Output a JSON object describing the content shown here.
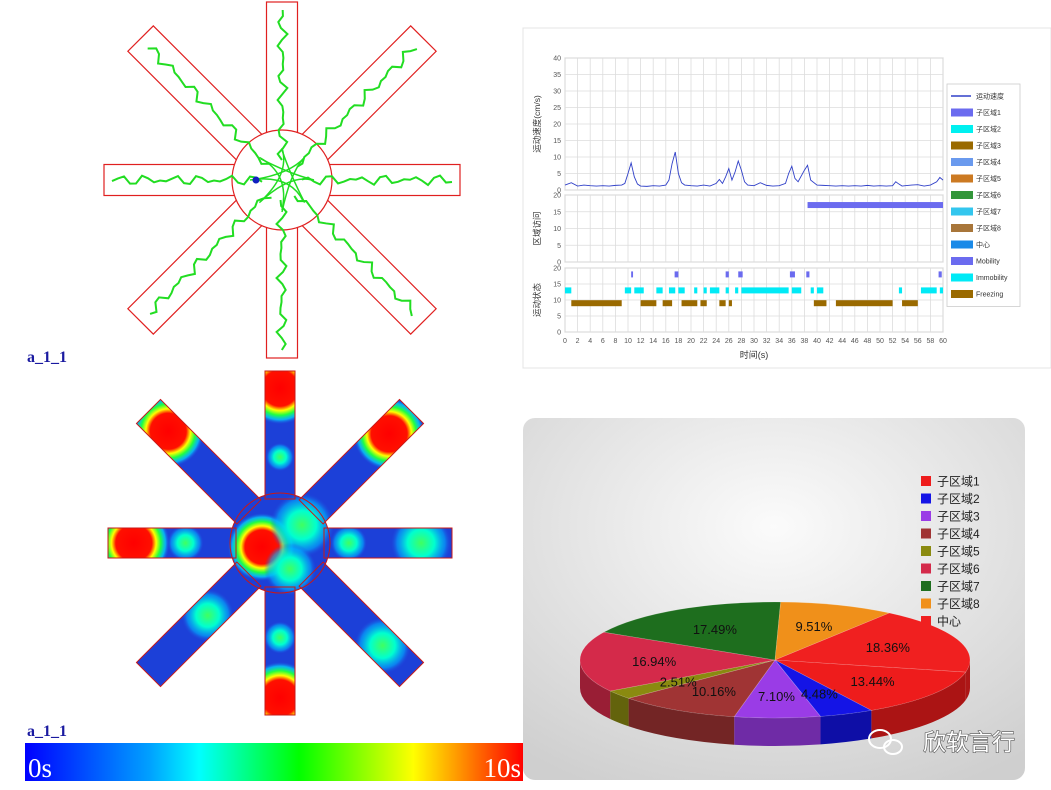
{
  "track": {
    "label": "a_1_1"
  },
  "heatmap": {
    "label": "a_1_1",
    "scale_min_label": "0s",
    "scale_max_label": "10s"
  },
  "watermark": "欣软言行",
  "chart_data": [
    {
      "type": "line",
      "xlabel": "时间(s)",
      "xlim": [
        0,
        60
      ],
      "xticks": [
        0,
        2,
        4,
        6,
        8,
        10,
        12,
        14,
        16,
        18,
        20,
        22,
        24,
        26,
        28,
        30,
        32,
        34,
        36,
        38,
        40,
        42,
        44,
        46,
        48,
        50,
        52,
        54,
        56,
        58,
        60
      ],
      "grid": true,
      "x": [
        0,
        1,
        2,
        3,
        4,
        5,
        6,
        7,
        8,
        9,
        9.5,
        10,
        10.5,
        11,
        11.5,
        12,
        13,
        14,
        15,
        16,
        16.5,
        17,
        17.5,
        18,
        18.5,
        19,
        20,
        21,
        22,
        23,
        24,
        24.5,
        25,
        25.5,
        26,
        26.5,
        27,
        27.5,
        28,
        28.5,
        29,
        30,
        31,
        32,
        33,
        34,
        35,
        35.5,
        36,
        36.5,
        37,
        38,
        38.5,
        39,
        40,
        41,
        42,
        43,
        44,
        45,
        46,
        47,
        48,
        49,
        50,
        51,
        52,
        52.5,
        53,
        53.5,
        54,
        55,
        56,
        57,
        58,
        59,
        59.5,
        60
      ],
      "series": [
        {
          "name": "运动速度",
          "color": "#3040c8",
          "values": [
            1.5,
            2.2,
            1.2,
            1.5,
            1.3,
            1.2,
            1.3,
            1.2,
            1.4,
            1.5,
            2,
            5,
            8.2,
            4,
            1.8,
            1.2,
            1.1,
            1.3,
            1.2,
            1.5,
            3,
            8,
            11.5,
            5,
            2.2,
            1.5,
            1.3,
            1.2,
            1.5,
            1.2,
            2,
            3.2,
            2,
            4,
            6.5,
            3,
            5.5,
            8.8,
            6,
            2.5,
            1.5,
            1.3,
            2.2,
            1.4,
            1.2,
            1.3,
            2,
            5,
            7.2,
            3.5,
            2.5,
            6,
            7.5,
            3,
            1.5,
            1.4,
            1.3,
            1.2,
            1.3,
            1.2,
            1.3,
            1.2,
            1.4,
            1.2,
            1.3,
            1.2,
            1.3,
            2.5,
            1.8,
            1.2,
            1.3,
            1.5,
            1.6,
            1.2,
            1.5,
            2.5,
            3.8,
            3
          ]
        }
      ],
      "panels": [
        {
          "ylabel": "运动速度(cm/s)",
          "ylim": [
            0,
            40
          ],
          "yticks": [
            0,
            5,
            10,
            15,
            20,
            25,
            30,
            35,
            40
          ]
        },
        {
          "ylabel": "区域访问",
          "ylim": [
            0,
            20
          ],
          "yticks": [
            0,
            5,
            10,
            15,
            20
          ],
          "bands": [
            {
              "name": "子区域1",
              "color": "#6b6bef",
              "level": 17,
              "intervals": [
                [
                  38.5,
                  60
                ]
              ]
            },
            {
              "name": "子区域2",
              "color": "#00f0f0"
            },
            {
              "name": "子区域3",
              "color": "#9a6a00"
            },
            {
              "name": "子区域4",
              "color": "#6a9aee"
            },
            {
              "name": "子区域5",
              "color": "#cc7a22"
            },
            {
              "name": "子区域6",
              "color": "#33963a"
            },
            {
              "name": "子区域7",
              "color": "#33c6ee"
            },
            {
              "name": "子区域8",
              "color": "#a8763a"
            },
            {
              "name": "中心",
              "color": "#1a8ae8"
            }
          ]
        },
        {
          "ylabel": "运动状态",
          "ylim": [
            0,
            20
          ],
          "yticks": [
            0,
            5,
            10,
            15,
            20
          ],
          "bands": [
            {
              "name": "Mobility",
              "color": "#6b6bef",
              "level": 18,
              "intervals": [
                [
                  10.5,
                  10.8
                ],
                [
                  17.4,
                  18
                ],
                [
                  25.5,
                  26
                ],
                [
                  27.5,
                  28.2
                ],
                [
                  35.7,
                  36.5
                ],
                [
                  38.3,
                  38.8
                ],
                [
                  59.3,
                  59.8
                ]
              ]
            },
            {
              "name": "Immobility",
              "color": "#00eaf6",
              "level": 13,
              "intervals": [
                [
                  0,
                  1
                ],
                [
                  9.5,
                  10.5
                ],
                [
                  11,
                  12.5
                ],
                [
                  14.5,
                  15.5
                ],
                [
                  16.5,
                  17.5
                ],
                [
                  18,
                  19
                ],
                [
                  20.5,
                  21
                ],
                [
                  22,
                  22.5
                ],
                [
                  23,
                  24.5
                ],
                [
                  25.5,
                  26
                ],
                [
                  27,
                  27.5
                ],
                [
                  28,
                  35.5
                ],
                [
                  36,
                  37.5
                ],
                [
                  39,
                  39.5
                ],
                [
                  40,
                  41
                ],
                [
                  53,
                  53.5
                ],
                [
                  56.5,
                  59
                ],
                [
                  59.5,
                  60
                ]
              ]
            },
            {
              "name": "Freezing",
              "color": "#9a6a00",
              "level": 9,
              "intervals": [
                [
                  1,
                  9
                ],
                [
                  12,
                  14.5
                ],
                [
                  15.5,
                  17
                ],
                [
                  18.5,
                  21
                ],
                [
                  21.5,
                  22.5
                ],
                [
                  24.5,
                  25.5
                ],
                [
                  26,
                  26.5
                ],
                [
                  39.5,
                  41.5
                ],
                [
                  43,
                  52
                ],
                [
                  53.5,
                  56
                ]
              ]
            }
          ]
        }
      ]
    },
    {
      "type": "pie",
      "categories": [
        "子区域1",
        "子区域2",
        "子区域3",
        "子区域4",
        "子区域5",
        "子区域6",
        "子区域7",
        "子区域8",
        "中心"
      ],
      "values": [
        13.44,
        4.48,
        7.1,
        10.16,
        2.51,
        16.94,
        17.49,
        9.51,
        18.36
      ],
      "value_labels": [
        "13.44%",
        "4.48%",
        "7.10%",
        "10.16%",
        "2.51%",
        "16.94%",
        "17.49%",
        "9.51%",
        "18.36%"
      ],
      "colors": [
        "#ee1c1c",
        "#1414e6",
        "#9a3ce6",
        "#a03434",
        "#8a8a10",
        "#d42a4a",
        "#1e6e1e",
        "#f0901a",
        "#f02020"
      ]
    }
  ]
}
